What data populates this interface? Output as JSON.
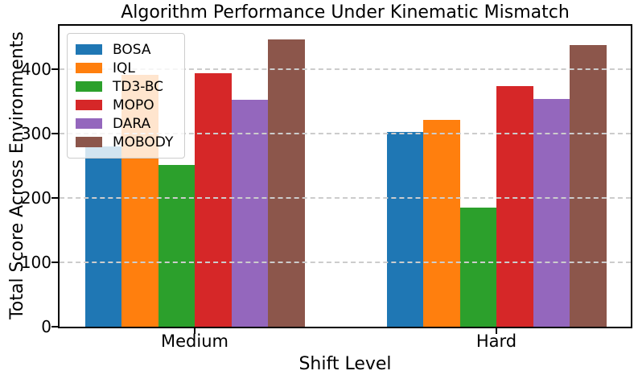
{
  "chart_data": {
    "type": "bar",
    "title": "Algorithm Performance Under Kinematic Mismatch",
    "xlabel": "Shift Level",
    "ylabel": "Total Score Across Environments",
    "categories": [
      "Medium",
      "Hard"
    ],
    "series": [
      {
        "name": "BOSA",
        "color": "#1f77b4",
        "values": [
          280,
          303
        ]
      },
      {
        "name": "IQL",
        "color": "#ff7f0e",
        "values": [
          392,
          322
        ]
      },
      {
        "name": "TD3-BC",
        "color": "#2ca02c",
        "values": [
          252,
          185
        ]
      },
      {
        "name": "MOPO",
        "color": "#d62728",
        "values": [
          394,
          374
        ]
      },
      {
        "name": "DARA",
        "color": "#9467bd",
        "values": [
          353,
          354
        ]
      },
      {
        "name": "MOBODY",
        "color": "#8c564b",
        "values": [
          447,
          438
        ]
      }
    ],
    "ylim": [
      0,
      468
    ],
    "yticks": [
      0,
      100,
      200,
      300,
      400
    ],
    "grid": true,
    "grid_axis": "y",
    "grid_style": "dashed",
    "grid_color": "#cccccc",
    "grid_above_bars": true,
    "legend_position": "upper-left",
    "legend_framealpha": 0.8,
    "spine_color": "#000000",
    "background_color": "#ffffff"
  }
}
